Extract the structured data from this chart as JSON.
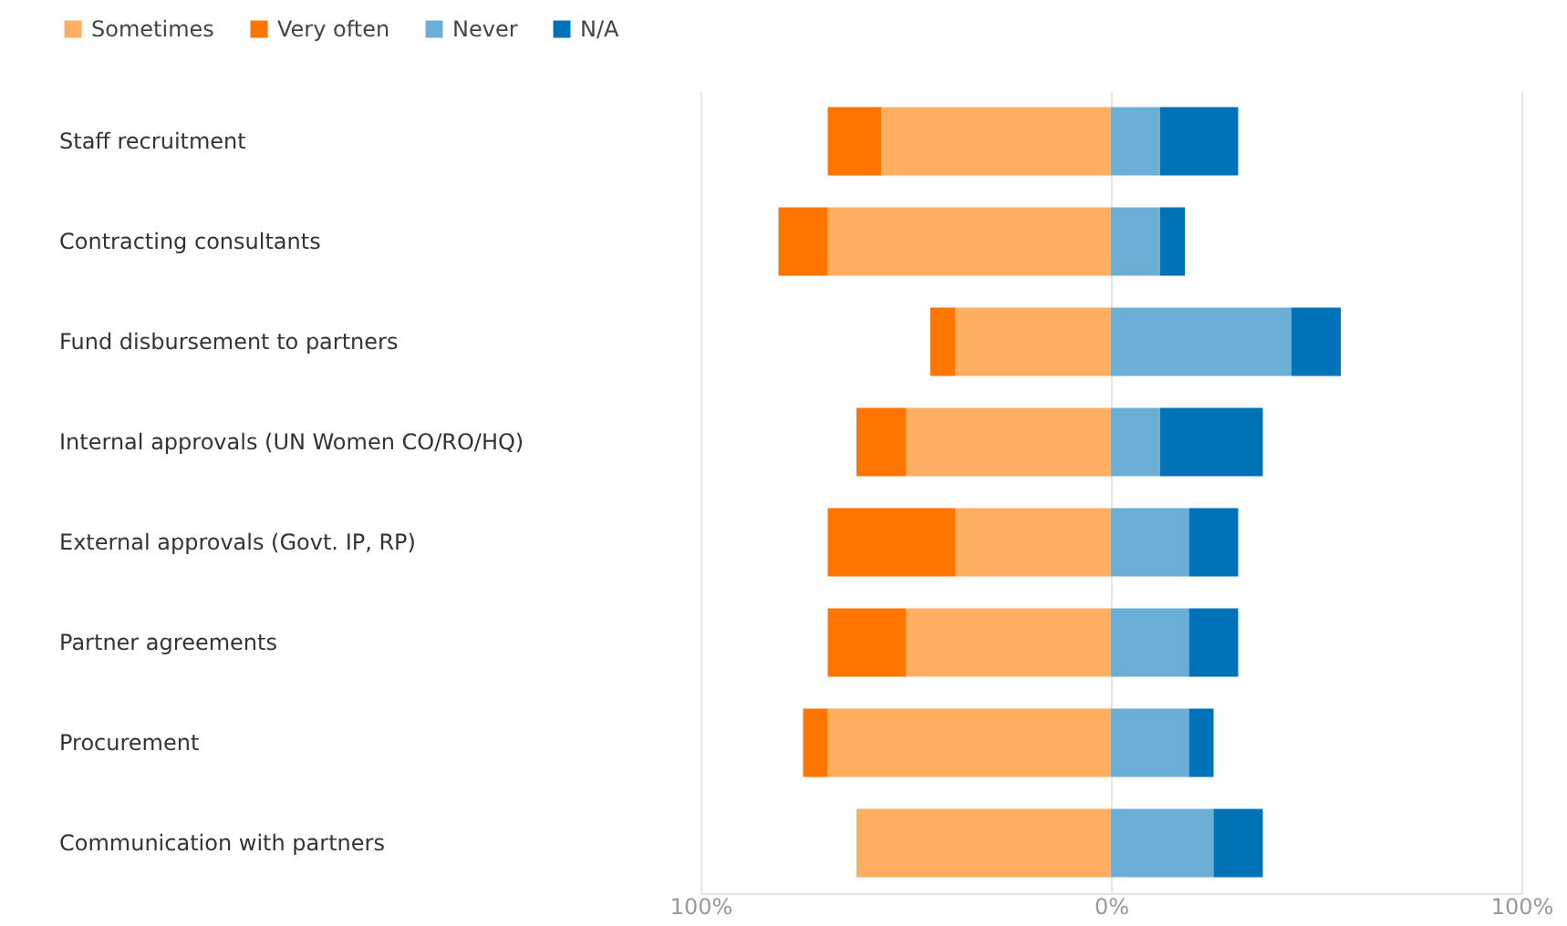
{
  "chart_data": {
    "type": "bar",
    "orientation": "horizontal",
    "stacked": true,
    "categories": [
      "Staff recruitment",
      "Contracting consultants",
      "Fund disbursement to partners",
      "Internal approvals (UN Women CO/RO/HQ)",
      "External approvals (Govt. IP, RP)",
      "Partner agreements",
      "Procurement",
      "Communication with partners"
    ],
    "series": [
      {
        "name": "Sometimes",
        "color": "#fdae61",
        "values": [
          -56,
          -69,
          -38,
          -50,
          -38,
          -50,
          -69,
          -62
        ]
      },
      {
        "name": "Very often",
        "color": "#ff7500",
        "values": [
          -13,
          -12,
          -6,
          -12,
          -31,
          -19,
          -6,
          null
        ]
      },
      {
        "name": "Never",
        "color": "#6baed6",
        "values": [
          12,
          12,
          44,
          12,
          19,
          19,
          19,
          25
        ]
      },
      {
        "name": "N/A",
        "color": "#0072b8",
        "values": [
          19,
          6,
          12,
          25,
          12,
          12,
          6,
          12
        ]
      }
    ],
    "xlim": [
      -100,
      100
    ],
    "xticks": [
      {
        "value": -100,
        "label": "100%"
      },
      {
        "value": 0,
        "label": "0%"
      },
      {
        "value": 100,
        "label": "100%"
      }
    ],
    "grid": "x",
    "legend": "top left"
  }
}
